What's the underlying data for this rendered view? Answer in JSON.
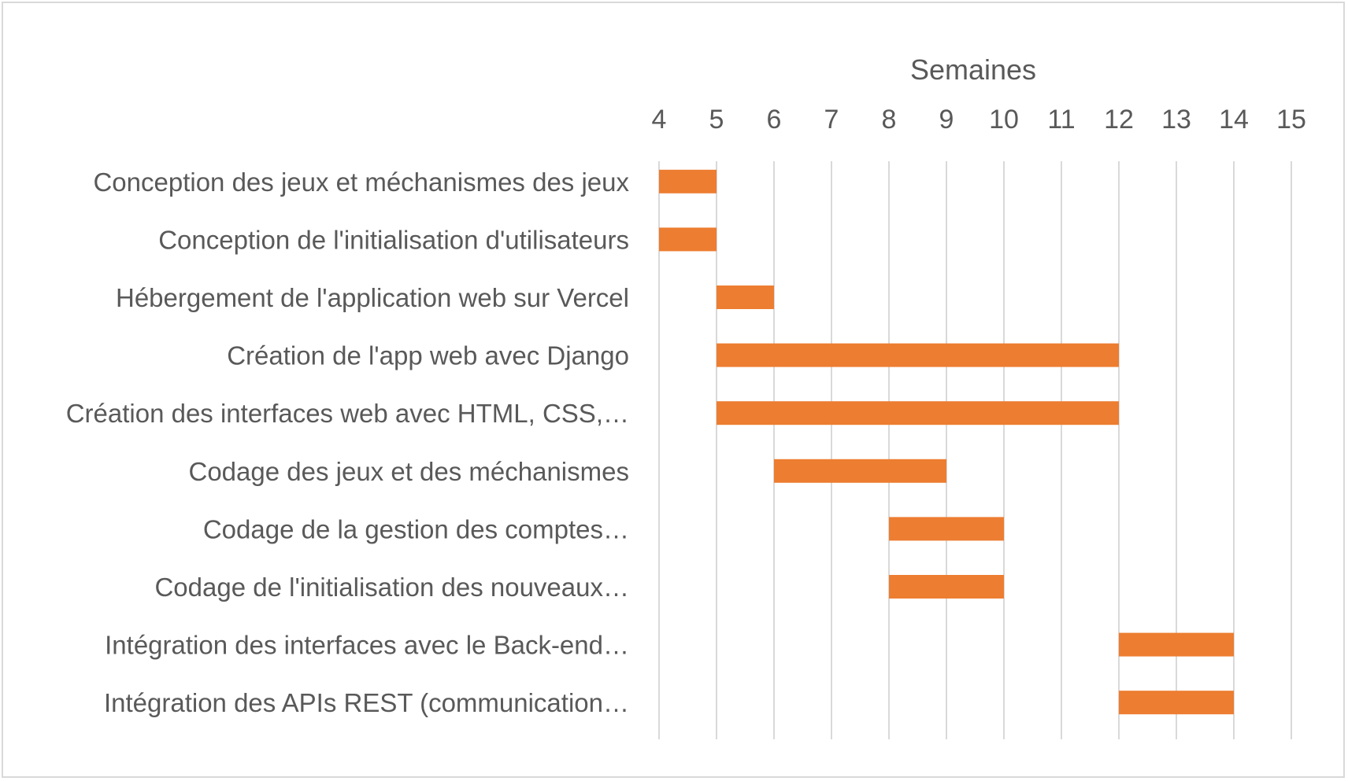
{
  "chart_data": {
    "type": "bar",
    "subtype": "gantt",
    "xlabel": "Semaines",
    "xlabel_position": "top",
    "xlim": [
      4,
      15
    ],
    "xticks": [
      4,
      5,
      6,
      7,
      8,
      9,
      10,
      11,
      12,
      13,
      14,
      15
    ],
    "grid": "vertical",
    "legend": "none",
    "bar_color": "#ED7D31",
    "grid_color": "#d9d9d9",
    "text_color": "#595959",
    "tasks": [
      {
        "label": "Conception des jeux et méchanismes des jeux",
        "start": 4,
        "end": 5
      },
      {
        "label": "Conception de l'initialisation d'utilisateurs",
        "start": 4,
        "end": 5
      },
      {
        "label": "Hébergement de l'application web sur Vercel",
        "start": 5,
        "end": 6
      },
      {
        "label": "Création de l'app web avec Django",
        "start": 5,
        "end": 12
      },
      {
        "label": "Création des interfaces web avec HTML, CSS,…",
        "start": 5,
        "end": 12
      },
      {
        "label": "Codage des jeux et des méchanismes",
        "start": 6,
        "end": 9
      },
      {
        "label": "Codage de la gestion des comptes…",
        "start": 8,
        "end": 10
      },
      {
        "label": "Codage de l'initialisation des nouveaux…",
        "start": 8,
        "end": 10
      },
      {
        "label": "Intégration des interfaces avec le Back-end…",
        "start": 12,
        "end": 14
      },
      {
        "label": "Intégration des APIs REST (communication…",
        "start": 12,
        "end": 14
      }
    ]
  }
}
